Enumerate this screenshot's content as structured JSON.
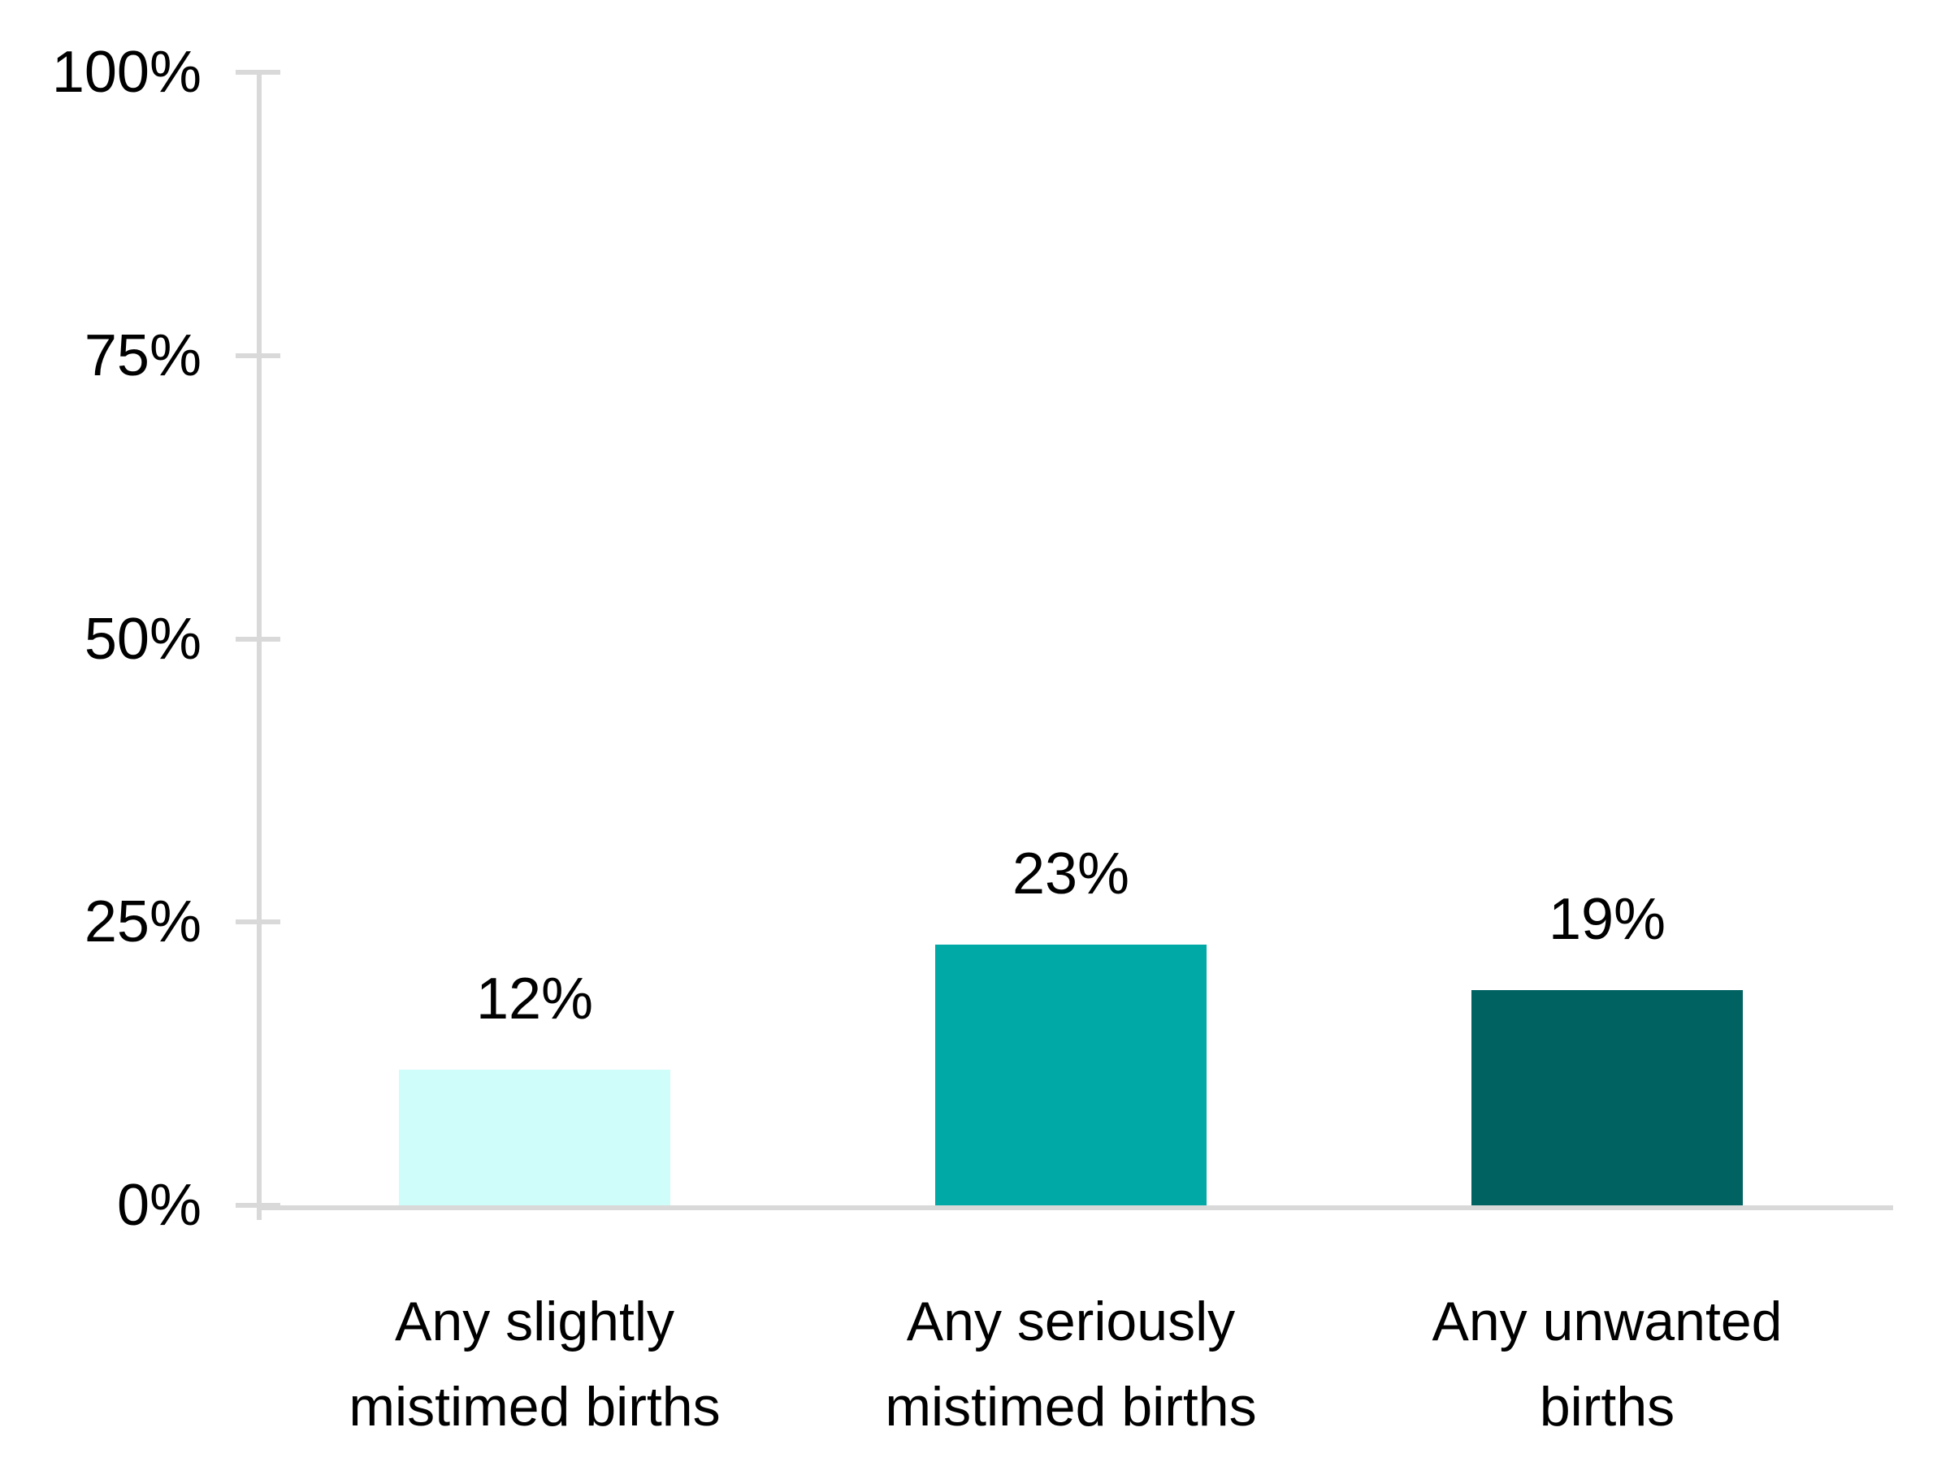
{
  "chart_data": {
    "type": "bar",
    "title": "",
    "xlabel": "",
    "ylabel": "",
    "categories": [
      {
        "lines": [
          "Any slightly",
          "mistimed births"
        ]
      },
      {
        "lines": [
          "Any seriously",
          "mistimed births"
        ]
      },
      {
        "lines": [
          "Any unwanted",
          "births"
        ]
      }
    ],
    "values": [
      12,
      23,
      19
    ],
    "data_labels": [
      "12%",
      "23%",
      "19%"
    ],
    "bar_colors": [
      "#CFFDFA",
      "#00A9A6",
      "#006261"
    ],
    "ylim": [
      0,
      100
    ],
    "yticks": [
      {
        "value": 0,
        "label": "0%"
      },
      {
        "value": 25,
        "label": "25%"
      },
      {
        "value": 50,
        "label": "50%"
      },
      {
        "value": 75,
        "label": "75%"
      },
      {
        "value": 100,
        "label": "100%"
      }
    ],
    "grid": false,
    "legend": null,
    "colors": {
      "axis": "#D9D9D9",
      "text": "#000000",
      "background": "#FFFFFF"
    }
  }
}
